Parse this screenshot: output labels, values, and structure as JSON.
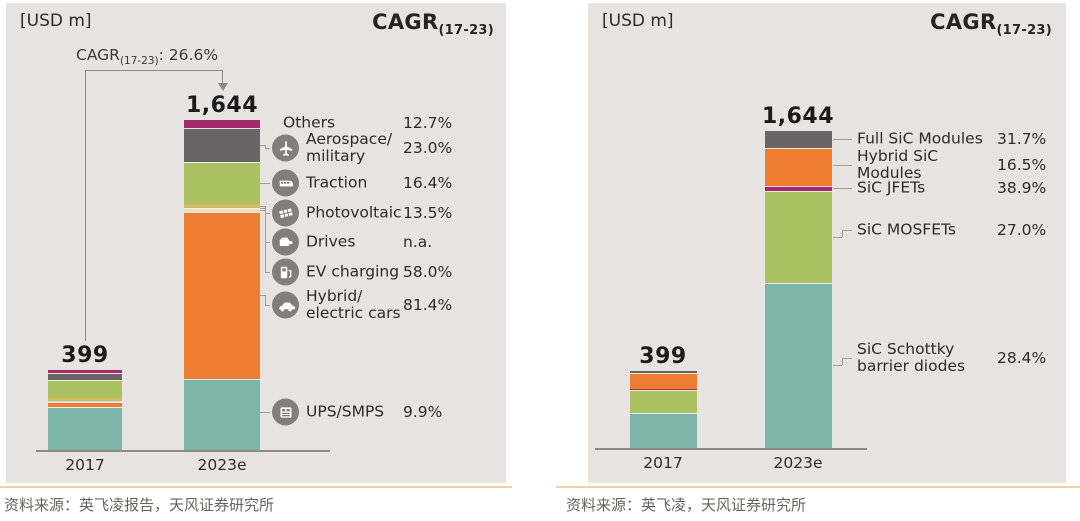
{
  "sources": {
    "left": "资料来源：英飞凌报告，天风证券研究所",
    "right": "资料来源：英飞凌，天风证券研究所"
  },
  "chart_data": [
    {
      "type": "bar",
      "stacked": true,
      "unit_label": "[USD m]",
      "cagr_header": {
        "text": "CAGR",
        "sub": "(17-23)"
      },
      "growth_annotation": {
        "text": "CAGR",
        "sub": "(17-23)",
        "value_suffix": ": 26.6%"
      },
      "categories": [
        "2017",
        "2023e"
      ],
      "totals": [
        399,
        1644
      ],
      "total_labels": [
        "399",
        "1,644"
      ],
      "legend_position": "right",
      "grid": false,
      "values_estimated_from_bar_proportions": true,
      "series_top_to_bottom": [
        {
          "name": "Others",
          "label_lines": [
            "Others"
          ],
          "cagr_17_23": "12.7%",
          "color": "#a4296a",
          "icon": null,
          "values_2017_2023e": [
            15,
            40
          ]
        },
        {
          "name": "Aerospace/military",
          "label_lines": [
            "Aerospace/",
            "military"
          ],
          "cagr_17_23": "23.0%",
          "color": "#6b6466",
          "icon": "fighter-jet",
          "values_2017_2023e": [
            35,
            168
          ]
        },
        {
          "name": "Traction",
          "label_lines": [
            "Traction"
          ],
          "cagr_17_23": "16.4%",
          "color": "#aac161",
          "icon": "train",
          "values_2017_2023e": [
            88,
            212
          ]
        },
        {
          "name": "Photovoltaic",
          "label_lines": [
            "Photovoltaic"
          ],
          "cagr_17_23": "13.5%",
          "color": "#d8bb53",
          "icon": "solar-panel",
          "values_2017_2023e": [
            10,
            12
          ]
        },
        {
          "name": "Drives",
          "label_lines": [
            "Drives"
          ],
          "cagr_17_23": "n.a.",
          "color": "#b7b1ac",
          "icon": "motor",
          "values_2017_2023e": [
            8,
            8
          ]
        },
        {
          "name": "EV charging",
          "label_lines": [
            "EV charging"
          ],
          "cagr_17_23": "58.0%",
          "color": "#ece0bd",
          "icon": "ev-charger",
          "values_2017_2023e": [
            3,
            16
          ]
        },
        {
          "name": "Hybrid/electric cars",
          "label_lines": [
            "Hybrid/",
            "electric cars"
          ],
          "cagr_17_23": "81.4%",
          "color": "#ec7d31",
          "icon": "car",
          "values_2017_2023e": [
            25,
            832
          ]
        },
        {
          "name": "UPS/SMPS",
          "label_lines": [
            "UPS/SMPS"
          ],
          "cagr_17_23": "9.9%",
          "color": "#7db5a8",
          "icon": "power-supply",
          "values_2017_2023e": [
            215,
            356
          ]
        }
      ]
    },
    {
      "type": "bar",
      "stacked": true,
      "unit_label": "[USD m]",
      "cagr_header": {
        "text": "CAGR",
        "sub": "(17-23)"
      },
      "categories": [
        "2017",
        "2023e"
      ],
      "totals": [
        399,
        1644
      ],
      "total_labels": [
        "399",
        "1,644"
      ],
      "legend_position": "right",
      "grid": false,
      "values_estimated_from_bar_proportions": true,
      "series_top_to_bottom": [
        {
          "name": "Full SiC Modules",
          "label_lines": [
            "Full SiC Modules"
          ],
          "cagr_17_23": "31.7%",
          "color": "#6b6466",
          "icon": null,
          "values_2017_2023e": [
            10,
            88
          ]
        },
        {
          "name": "Hybrid SiC Modules",
          "label_lines": [
            "Hybrid SiC",
            "Modules"
          ],
          "cagr_17_23": "16.5%",
          "color": "#ec7d31",
          "icon": null,
          "values_2017_2023e": [
            85,
            196
          ]
        },
        {
          "name": "SiC JFETs",
          "label_lines": [
            "SiC JFETs"
          ],
          "cagr_17_23": "38.9%",
          "color": "#a4296a",
          "icon": null,
          "values_2017_2023e": [
            4,
            26
          ]
        },
        {
          "name": "SiC MOSFETs",
          "label_lines": [
            "SiC MOSFETs"
          ],
          "cagr_17_23": "27.0%",
          "color": "#aac161",
          "icon": null,
          "values_2017_2023e": [
            119,
            476
          ]
        },
        {
          "name": "SiC Schottky barrier diodes",
          "label_lines": [
            "SiC Schottky",
            "barrier diodes"
          ],
          "cagr_17_23": "28.4%",
          "color": "#7db5a8",
          "icon": null,
          "values_2017_2023e": [
            181,
            858
          ]
        }
      ]
    }
  ]
}
